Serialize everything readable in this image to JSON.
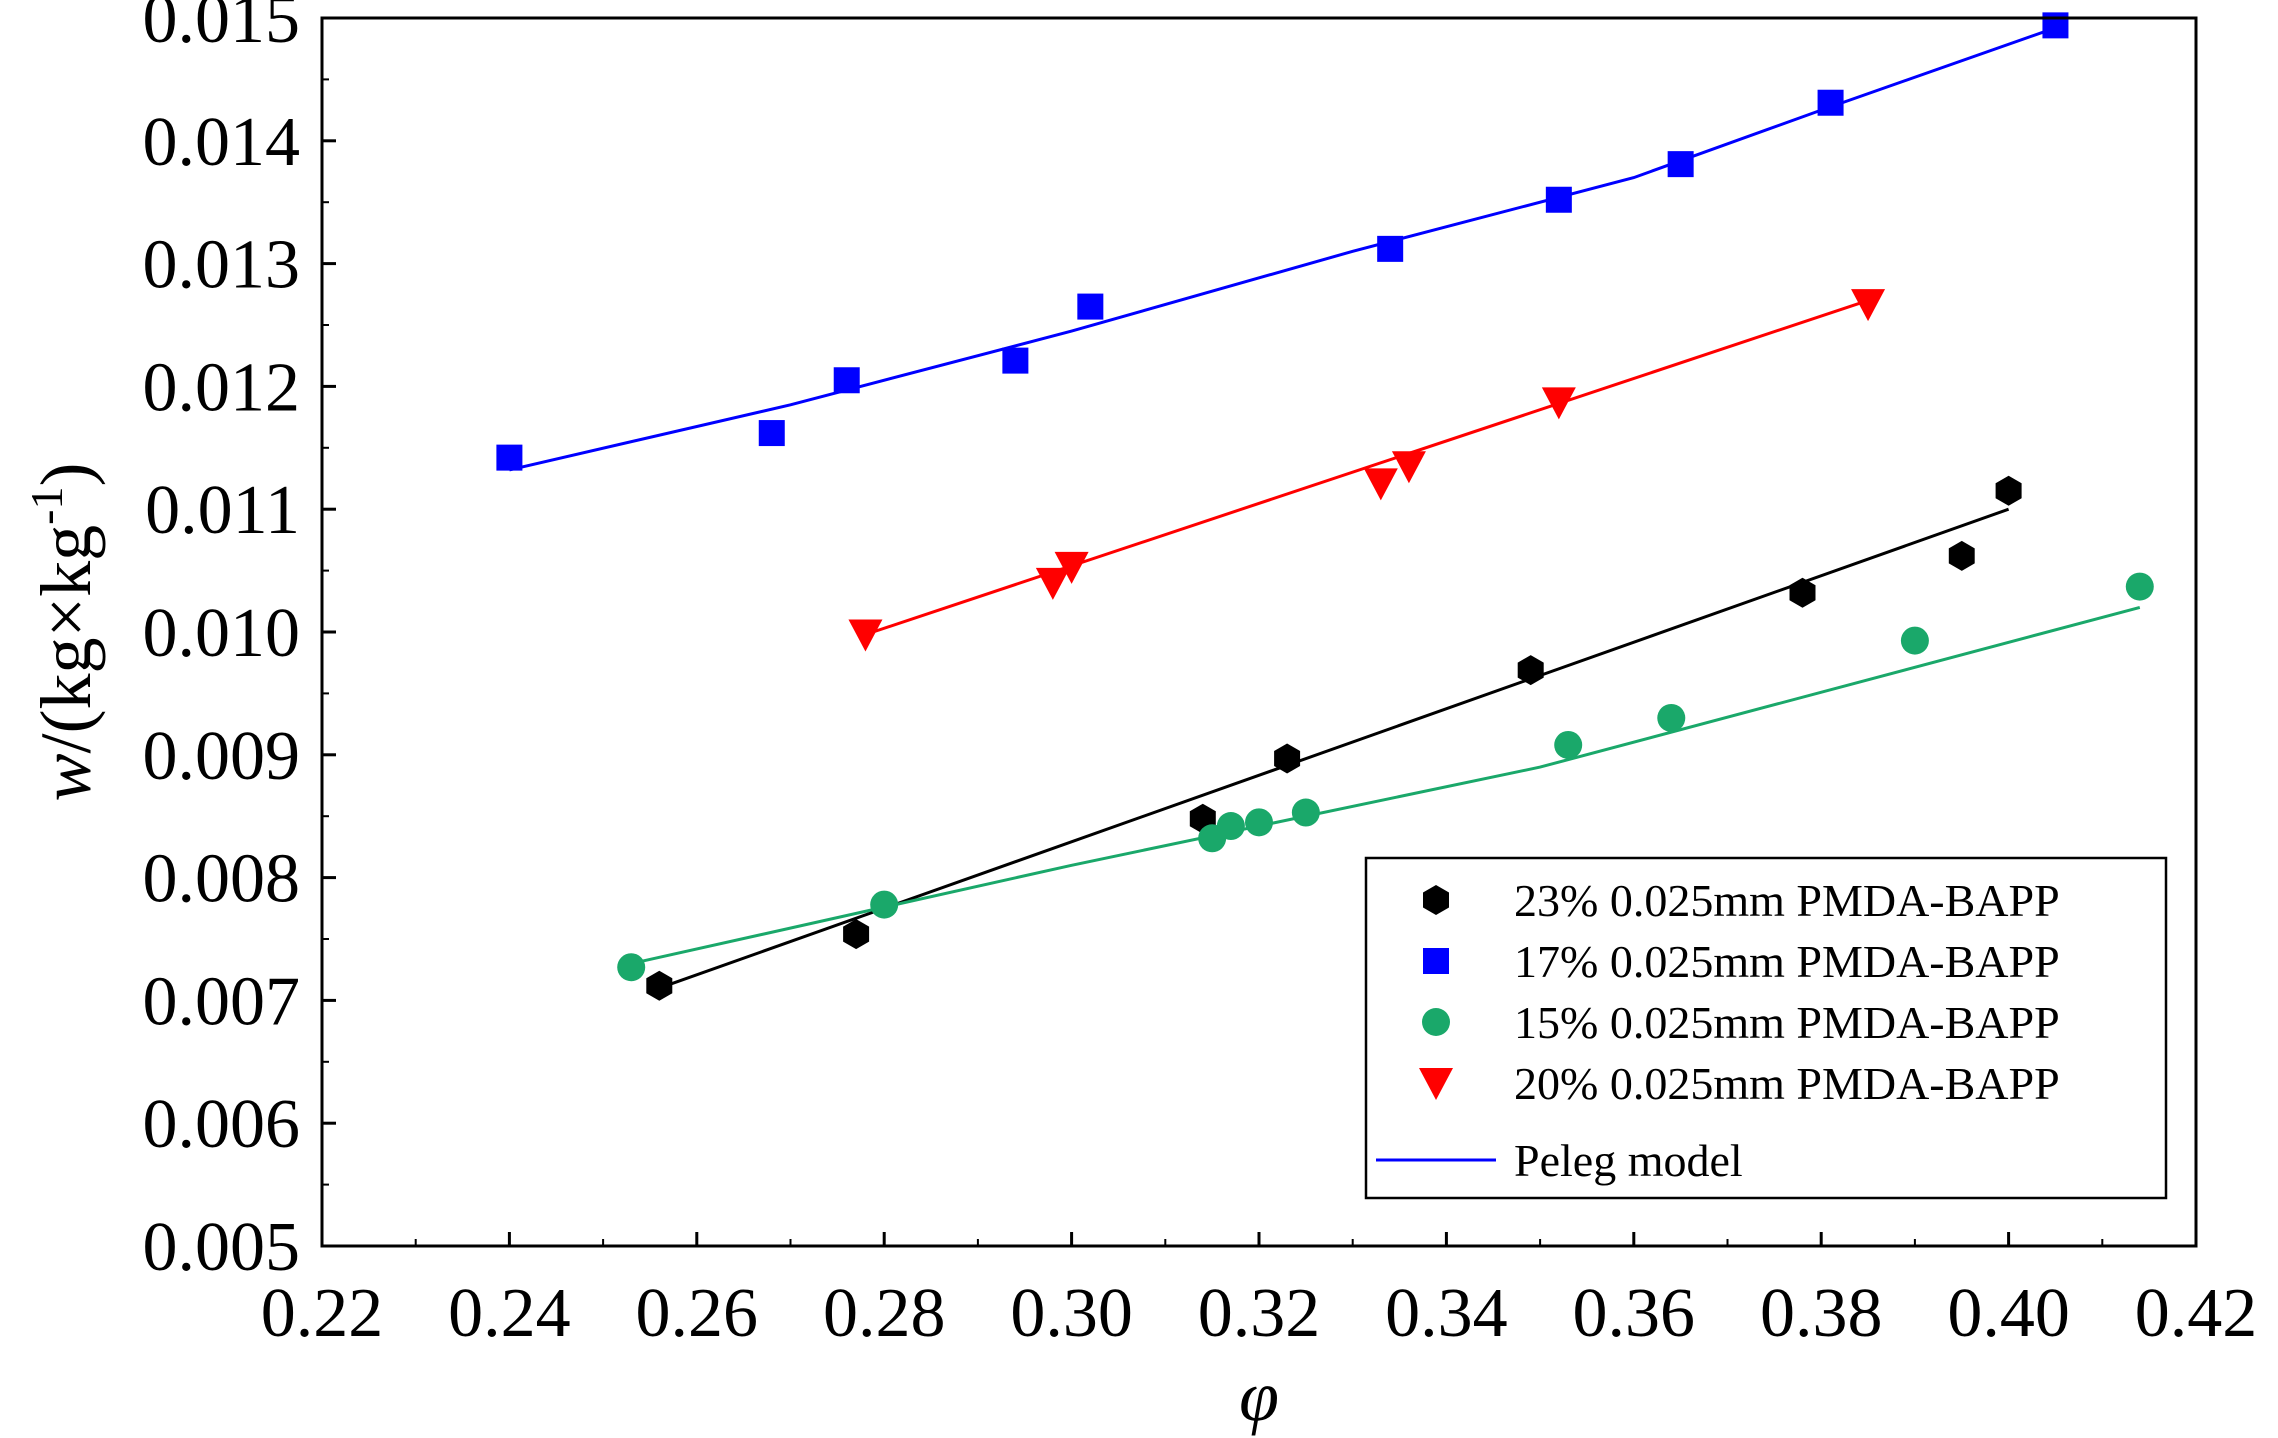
{
  "chart_data": {
    "type": "scatter",
    "title": "",
    "xlabel": "φ",
    "ylabel": {
      "var": "w",
      "pre": "/(kg×kg",
      "sup": "-1",
      "post": ")"
    },
    "xlim": [
      0.22,
      0.42
    ],
    "ylim": [
      0.005,
      0.015
    ],
    "xticks": [
      "0.22",
      "0.24",
      "0.26",
      "0.28",
      "0.30",
      "0.32",
      "0.34",
      "0.36",
      "0.38",
      "0.40",
      "0.42"
    ],
    "yticks": [
      "0.005",
      "0.006",
      "0.007",
      "0.008",
      "0.009",
      "0.010",
      "0.011",
      "0.012",
      "0.013",
      "0.014",
      "0.015"
    ],
    "legend_position": "bottom-right",
    "series": [
      {
        "name": "23% 0.025mm PMDA-BAPP",
        "marker": "hexagon",
        "color": "#000000",
        "x": [
          0.256,
          0.277,
          0.314,
          0.323,
          0.349,
          0.378,
          0.395,
          0.4
        ],
        "y": [
          0.00712,
          0.00754,
          0.00848,
          0.00897,
          0.00969,
          0.01032,
          0.01062,
          0.01115
        ],
        "fit": {
          "x": [
            0.256,
            0.4
          ],
          "y": [
            0.0071,
            0.011
          ]
        }
      },
      {
        "name": "17% 0.025mm PMDA-BAPP",
        "marker": "square",
        "color": "#0000ff",
        "x": [
          0.24,
          0.268,
          0.276,
          0.294,
          0.302,
          0.334,
          0.352,
          0.365,
          0.381,
          0.405
        ],
        "y": [
          0.01142,
          0.01162,
          0.01205,
          0.01221,
          0.01265,
          0.01312,
          0.01352,
          0.01381,
          0.01431,
          0.01494
        ],
        "fit": {
          "x": [
            0.24,
            0.27,
            0.3,
            0.33,
            0.36,
            0.38,
            0.405
          ],
          "y": [
            0.01132,
            0.01185,
            0.01245,
            0.0131,
            0.0137,
            0.01425,
            0.01492
          ]
        }
      },
      {
        "name": "15% 0.025mm PMDA-BAPP",
        "marker": "circle",
        "color": "#1aa86a",
        "x": [
          0.253,
          0.28,
          0.315,
          0.317,
          0.32,
          0.325,
          0.353,
          0.364,
          0.39,
          0.414
        ],
        "y": [
          0.00727,
          0.00778,
          0.00832,
          0.00842,
          0.00845,
          0.00853,
          0.00908,
          0.0093,
          0.00993,
          0.01037
        ],
        "fit": {
          "x": [
            0.253,
            0.3,
            0.35,
            0.414
          ],
          "y": [
            0.0073,
            0.0081,
            0.0089,
            0.0102
          ]
        }
      },
      {
        "name": "20% 0.025mm PMDA-BAPP",
        "marker": "triangle-down",
        "color": "#ff0000",
        "x": [
          0.278,
          0.298,
          0.3,
          0.333,
          0.336,
          0.352,
          0.385
        ],
        "y": [
          0.00998,
          0.0104,
          0.01053,
          0.01121,
          0.01135,
          0.01187,
          0.01267
        ],
        "fit": {
          "x": [
            0.278,
            0.385
          ],
          "y": [
            0.00998,
            0.0127
          ]
        }
      }
    ],
    "model_line": {
      "name": "Peleg model",
      "color": "#0000ff"
    }
  }
}
